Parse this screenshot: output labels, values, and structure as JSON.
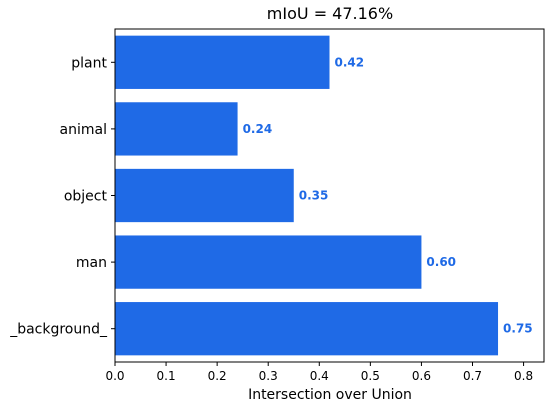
{
  "colors": {
    "bar": "#1f6ae6",
    "data_label": "#1f6ae6"
  },
  "chart_data": {
    "type": "bar",
    "orientation": "horizontal",
    "title": "mIoU = 47.16%",
    "xlabel": "Intersection over Union",
    "ylabel": "",
    "categories": [
      "plant",
      "animal",
      "object",
      "man",
      "_background_"
    ],
    "values": [
      0.42,
      0.24,
      0.35,
      0.6,
      0.75
    ],
    "value_labels": [
      "0.42",
      "0.24",
      "0.35",
      "0.60",
      "0.75"
    ],
    "xlim": [
      0,
      0.84
    ],
    "xticks": [
      0.0,
      0.1,
      0.2,
      0.3,
      0.4,
      0.5,
      0.6,
      0.7,
      0.8
    ],
    "xtick_labels": [
      "0.0",
      "0.1",
      "0.2",
      "0.3",
      "0.4",
      "0.5",
      "0.6",
      "0.7",
      "0.8"
    ],
    "grid": false,
    "legend": "none"
  }
}
